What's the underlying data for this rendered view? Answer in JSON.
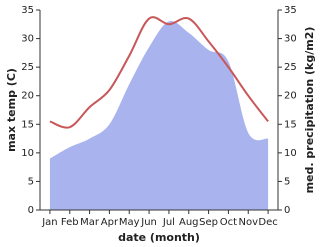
{
  "chart_data": {
    "type": "line",
    "x_label": "date (month)",
    "y_label": "max temp (C)",
    "y2_label": "med. precipitation (kg/m2)",
    "categories": [
      "Jan",
      "Feb",
      "Mar",
      "Apr",
      "May",
      "Jun",
      "Jul",
      "Aug",
      "Sep",
      "Oct",
      "Nov",
      "Dec"
    ],
    "series": [
      {
        "name": "max temp",
        "color": "#c8575a",
        "values": [
          15.5,
          14.5,
          18,
          21,
          27,
          33.5,
          32.5,
          33.5,
          29.5,
          25,
          20,
          15.5
        ]
      },
      {
        "name": "med. precipitation",
        "color": "#a9b4ef",
        "axis": "y2",
        "values": [
          9,
          11,
          12.5,
          15,
          22,
          28.5,
          33,
          31,
          28,
          26,
          13.5,
          12.5
        ]
      }
    ],
    "ylim": [
      0,
      35
    ],
    "yticks": [
      0,
      5,
      10,
      15,
      20,
      25,
      30,
      35
    ],
    "y2lim": [
      0,
      35
    ],
    "y2ticks": [
      0,
      5,
      10,
      15,
      20,
      25,
      30,
      35
    ]
  }
}
